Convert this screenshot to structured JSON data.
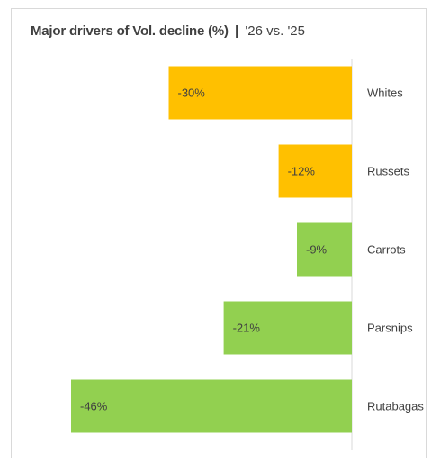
{
  "title": {
    "main": "Major drivers of Vol. decline (%)",
    "separator": "|",
    "sub": "'26 vs. '25"
  },
  "chart_data": {
    "type": "bar",
    "orientation": "horizontal",
    "categories": [
      "Whites",
      "Russets",
      "Carrots",
      "Parsnips",
      "Rutabagas"
    ],
    "values": [
      -30,
      -12,
      -9,
      -21,
      -46
    ],
    "labels": [
      "-30%",
      "-12%",
      "-9%",
      "-21%",
      "-46%"
    ],
    "colors": [
      "#FFC000",
      "#FFC000",
      "#92D050",
      "#92D050",
      "#92D050"
    ],
    "xlim": [
      -46,
      0
    ],
    "grid": false,
    "legend": "none"
  }
}
